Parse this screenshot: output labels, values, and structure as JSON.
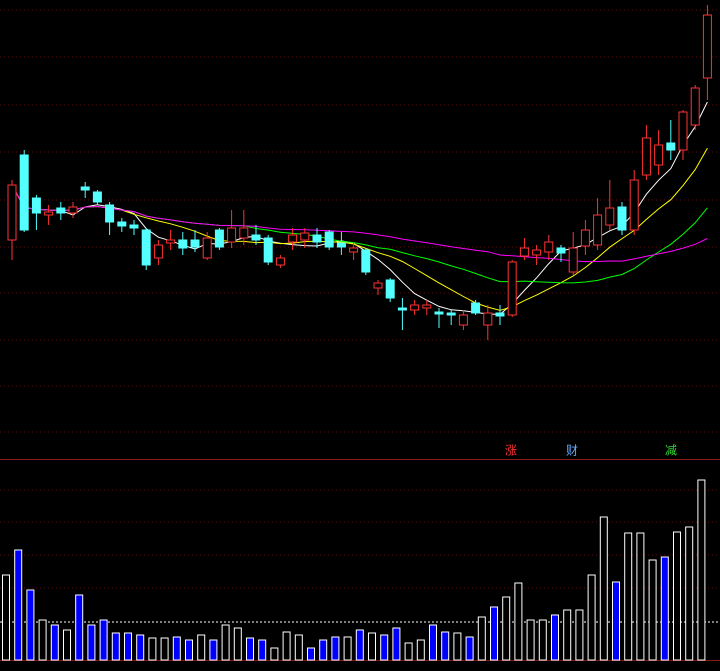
{
  "chart_data": {
    "type": "candlestick",
    "open": [
      220,
      305,
      262,
      245,
      252,
      247,
      273,
      268,
      255,
      238,
      235,
      230,
      202,
      217,
      220,
      220,
      202,
      230,
      218,
      222,
      225,
      222,
      195,
      218,
      220,
      225,
      228,
      217,
      208,
      210,
      172,
      180,
      152,
      150,
      152,
      148,
      147,
      135,
      157,
      135,
      147,
      145,
      204,
      205,
      208,
      212,
      188,
      214,
      215,
      235,
      253,
      230,
      285,
      295,
      317,
      310,
      335,
      382
    ],
    "high": [
      280,
      310,
      265,
      255,
      258,
      258,
      278,
      270,
      258,
      242,
      240,
      232,
      220,
      230,
      228,
      230,
      228,
      232,
      250,
      250,
      235,
      225,
      205,
      232,
      232,
      232,
      230,
      228,
      218,
      212,
      180,
      182,
      162,
      160,
      160,
      152,
      150,
      150,
      160,
      155,
      155,
      200,
      222,
      215,
      225,
      215,
      228,
      240,
      262,
      280,
      258,
      290,
      335,
      330,
      340,
      350,
      375,
      455
    ],
    "low": [
      200,
      228,
      230,
      235,
      240,
      242,
      262,
      255,
      225,
      228,
      225,
      190,
      195,
      210,
      205,
      208,
      200,
      210,
      212,
      215,
      215,
      195,
      192,
      210,
      212,
      212,
      210,
      205,
      200,
      185,
      165,
      158,
      130,
      145,
      145,
      132,
      135,
      130,
      145,
      120,
      135,
      143,
      200,
      195,
      200,
      198,
      185,
      205,
      210,
      230,
      225,
      225,
      280,
      285,
      300,
      300,
      330,
      360
    ],
    "close": [
      275,
      230,
      247,
      248,
      247,
      253,
      270,
      258,
      238,
      234,
      232,
      195,
      215,
      220,
      212,
      213,
      222,
      213,
      232,
      232,
      220,
      198,
      202,
      225,
      227,
      218,
      213,
      213,
      212,
      188,
      177,
      162,
      150,
      155,
      155,
      146,
      145,
      145,
      147,
      147,
      144,
      198,
      212,
      210,
      218,
      207,
      212,
      230,
      245,
      252,
      230,
      280,
      322,
      315,
      310,
      348,
      372,
      445
    ],
    "volume": [
      85,
      110,
      70,
      40,
      35,
      30,
      65,
      35,
      40,
      27,
      27,
      25,
      22,
      22,
      23,
      20,
      25,
      20,
      35,
      32,
      22,
      20,
      12,
      28,
      25,
      12,
      20,
      23,
      23,
      30,
      27,
      25,
      32,
      17,
      20,
      35,
      28,
      27,
      23,
      43,
      53,
      63,
      77,
      40,
      40,
      45,
      50,
      50,
      85,
      143,
      78,
      127,
      127,
      100,
      103,
      128,
      133,
      180
    ],
    "ylim": [
      0,
      460
    ],
    "volume_ylim": [
      0,
      200
    ],
    "up_color": "#ff3232",
    "down_color": "#54ffff",
    "volume_up_color": "#ffffff",
    "volume_down_color": "#0000ff",
    "moving_averages": [
      {
        "period": 5,
        "color": "#ffffff"
      },
      {
        "period": 10,
        "color": "#ffff00"
      },
      {
        "period": 20,
        "color": "#00ff00"
      },
      {
        "period": 40,
        "color": "#ff00ff"
      }
    ],
    "annotations": [
      {
        "text": "涨",
        "color": "#ff3232"
      },
      {
        "text": "财",
        "color": "#66aaff"
      },
      {
        "text": "减",
        "color": "#33dd33"
      }
    ]
  }
}
